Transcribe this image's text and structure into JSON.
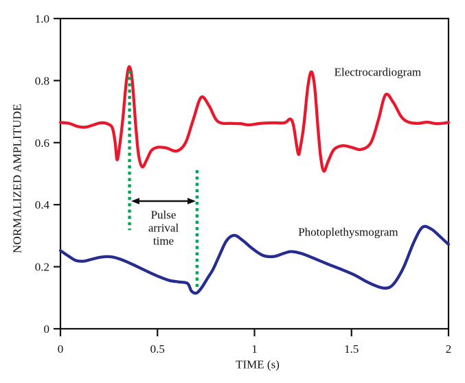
{
  "chart_data": {
    "type": "line",
    "title": "",
    "xlabel": "TIME (s)",
    "ylabel": "NORMALIZED AMPLITUDE",
    "xlim": [
      0,
      2
    ],
    "ylim": [
      0,
      1
    ],
    "grid": false,
    "legend_position": "inline-labels",
    "background_color": "#ffffff",
    "axis_color": "#111111",
    "x_ticks": {
      "values": [
        0,
        0.5,
        1,
        1.5,
        2
      ],
      "labels": [
        "0",
        "0.5",
        "1",
        "1.5",
        "2"
      ]
    },
    "y_ticks": {
      "values": [
        1.0,
        0.8,
        0.6,
        0.4,
        0.2,
        0
      ],
      "labels": [
        "1.0",
        "0.8",
        "0.6",
        "0.4",
        "0.2",
        "0"
      ]
    },
    "series": [
      {
        "name": "Electrocardiogram",
        "color": "#e8192d",
        "label_anchor": {
          "t": 1.635,
          "v": 0.827
        },
        "points": [
          [
            0.0,
            0.665
          ],
          [
            0.045,
            0.662
          ],
          [
            0.09,
            0.652
          ],
          [
            0.13,
            0.65
          ],
          [
            0.17,
            0.657
          ],
          [
            0.21,
            0.664
          ],
          [
            0.245,
            0.66
          ],
          [
            0.268,
            0.647
          ],
          [
            0.282,
            0.6
          ],
          [
            0.292,
            0.545
          ],
          [
            0.305,
            0.59
          ],
          [
            0.322,
            0.68
          ],
          [
            0.34,
            0.8
          ],
          [
            0.355,
            0.845
          ],
          [
            0.37,
            0.8
          ],
          [
            0.388,
            0.655
          ],
          [
            0.403,
            0.56
          ],
          [
            0.422,
            0.522
          ],
          [
            0.445,
            0.545
          ],
          [
            0.468,
            0.574
          ],
          [
            0.5,
            0.585
          ],
          [
            0.545,
            0.583
          ],
          [
            0.6,
            0.573
          ],
          [
            0.645,
            0.6
          ],
          [
            0.685,
            0.675
          ],
          [
            0.725,
            0.746
          ],
          [
            0.765,
            0.72
          ],
          [
            0.8,
            0.676
          ],
          [
            0.83,
            0.663
          ],
          [
            0.88,
            0.662
          ],
          [
            0.93,
            0.661
          ],
          [
            0.97,
            0.657
          ],
          [
            1.03,
            0.662
          ],
          [
            1.1,
            0.664
          ],
          [
            1.155,
            0.664
          ],
          [
            1.185,
            0.676
          ],
          [
            1.202,
            0.652
          ],
          [
            1.225,
            0.565
          ],
          [
            1.238,
            0.59
          ],
          [
            1.255,
            0.66
          ],
          [
            1.275,
            0.78
          ],
          [
            1.293,
            0.828
          ],
          [
            1.31,
            0.78
          ],
          [
            1.328,
            0.64
          ],
          [
            1.342,
            0.55
          ],
          [
            1.358,
            0.508
          ],
          [
            1.38,
            0.54
          ],
          [
            1.41,
            0.578
          ],
          [
            1.455,
            0.59
          ],
          [
            1.5,
            0.585
          ],
          [
            1.55,
            0.578
          ],
          [
            1.6,
            0.6
          ],
          [
            1.638,
            0.672
          ],
          [
            1.675,
            0.754
          ],
          [
            1.715,
            0.73
          ],
          [
            1.755,
            0.685
          ],
          [
            1.79,
            0.667
          ],
          [
            1.84,
            0.662
          ],
          [
            1.89,
            0.666
          ],
          [
            1.94,
            0.661
          ],
          [
            2.0,
            0.665
          ]
        ]
      },
      {
        "name": "Photoplethysmogram",
        "color": "#262d8f",
        "label_anchor": {
          "t": 1.483,
          "v": 0.312
        },
        "points": [
          [
            0.0,
            0.252
          ],
          [
            0.04,
            0.235
          ],
          [
            0.08,
            0.22
          ],
          [
            0.12,
            0.218
          ],
          [
            0.16,
            0.224
          ],
          [
            0.21,
            0.231
          ],
          [
            0.26,
            0.232
          ],
          [
            0.31,
            0.224
          ],
          [
            0.37,
            0.208
          ],
          [
            0.43,
            0.19
          ],
          [
            0.5,
            0.17
          ],
          [
            0.56,
            0.156
          ],
          [
            0.61,
            0.151
          ],
          [
            0.655,
            0.146
          ],
          [
            0.675,
            0.122
          ],
          [
            0.7,
            0.115
          ],
          [
            0.725,
            0.13
          ],
          [
            0.755,
            0.16
          ],
          [
            0.785,
            0.19
          ],
          [
            0.815,
            0.23
          ],
          [
            0.855,
            0.283
          ],
          [
            0.895,
            0.301
          ],
          [
            0.935,
            0.287
          ],
          [
            0.99,
            0.258
          ],
          [
            1.045,
            0.236
          ],
          [
            1.1,
            0.233
          ],
          [
            1.15,
            0.243
          ],
          [
            1.19,
            0.249
          ],
          [
            1.245,
            0.242
          ],
          [
            1.31,
            0.226
          ],
          [
            1.38,
            0.208
          ],
          [
            1.45,
            0.191
          ],
          [
            1.52,
            0.172
          ],
          [
            1.58,
            0.151
          ],
          [
            1.635,
            0.136
          ],
          [
            1.67,
            0.131
          ],
          [
            1.7,
            0.135
          ],
          [
            1.73,
            0.155
          ],
          [
            1.77,
            0.2
          ],
          [
            1.82,
            0.277
          ],
          [
            1.865,
            0.327
          ],
          [
            1.91,
            0.322
          ],
          [
            1.955,
            0.298
          ],
          [
            2.0,
            0.272
          ]
        ]
      }
    ],
    "annotations": {
      "pulse_arrival_time": {
        "label_lines": [
          "Pulse",
          "arrival",
          "time"
        ],
        "label_center": {
          "t": 0.531,
          "v": 0.325
        },
        "marker_color": "#00a651",
        "arrow_color": "#111111",
        "dotted_lines": [
          {
            "t": 0.356,
            "v_from": 0.832,
            "v_to": 0.318
          },
          {
            "t": 0.704,
            "v_from": 0.511,
            "v_to": 0.126
          }
        ],
        "arrow": {
          "v": 0.4115,
          "t_from": 0.3646,
          "t_to": 0.6973
        }
      }
    }
  }
}
